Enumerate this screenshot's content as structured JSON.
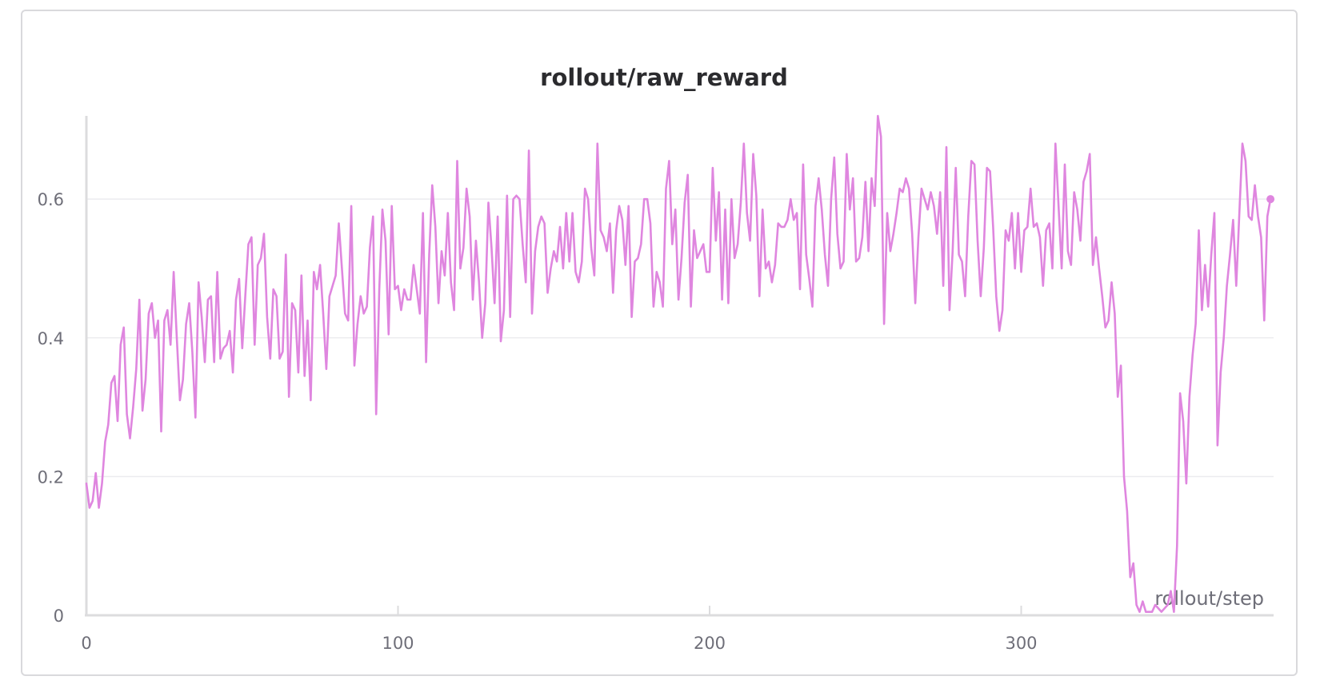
{
  "chart_data": {
    "type": "line",
    "title": "rollout/raw_reward",
    "xlabel": "rollout/step",
    "ylabel": "",
    "xlim": [
      0,
      381
    ],
    "ylim": [
      0,
      0.72
    ],
    "x_ticks": [
      "0",
      "100",
      "200",
      "300"
    ],
    "y_ticks": [
      "0",
      "0.2",
      "0.4",
      "0.6"
    ],
    "grid": true,
    "legend": "none",
    "color": "#df86df",
    "series": [
      {
        "x_start": 0,
        "x_step": 1,
        "values": [
          0.19,
          0.155,
          0.165,
          0.205,
          0.155,
          0.19,
          0.25,
          0.275,
          0.335,
          0.345,
          0.28,
          0.39,
          0.415,
          0.29,
          0.255,
          0.3,
          0.355,
          0.455,
          0.295,
          0.34,
          0.435,
          0.45,
          0.4,
          0.425,
          0.265,
          0.425,
          0.44,
          0.39,
          0.495,
          0.4,
          0.31,
          0.34,
          0.42,
          0.45,
          0.38,
          0.285,
          0.48,
          0.43,
          0.365,
          0.455,
          0.46,
          0.365,
          0.495,
          0.37,
          0.385,
          0.39,
          0.41,
          0.35,
          0.455,
          0.485,
          0.385,
          0.46,
          0.535,
          0.545,
          0.39,
          0.505,
          0.515,
          0.55,
          0.43,
          0.37,
          0.47,
          0.46,
          0.37,
          0.38,
          0.52,
          0.315,
          0.45,
          0.44,
          0.35,
          0.49,
          0.345,
          0.425,
          0.31,
          0.495,
          0.47,
          0.505,
          0.435,
          0.355,
          0.46,
          0.475,
          0.49,
          0.565,
          0.5,
          0.435,
          0.425,
          0.59,
          0.36,
          0.42,
          0.46,
          0.435,
          0.445,
          0.53,
          0.575,
          0.29,
          0.47,
          0.585,
          0.54,
          0.405,
          0.59,
          0.47,
          0.475,
          0.44,
          0.47,
          0.455,
          0.455,
          0.505,
          0.47,
          0.435,
          0.58,
          0.365,
          0.52,
          0.62,
          0.56,
          0.45,
          0.525,
          0.49,
          0.58,
          0.48,
          0.44,
          0.655,
          0.5,
          0.53,
          0.615,
          0.575,
          0.455,
          0.54,
          0.48,
          0.4,
          0.45,
          0.595,
          0.53,
          0.45,
          0.575,
          0.395,
          0.44,
          0.605,
          0.43,
          0.6,
          0.605,
          0.6,
          0.535,
          0.48,
          0.67,
          0.435,
          0.525,
          0.56,
          0.575,
          0.565,
          0.465,
          0.5,
          0.525,
          0.51,
          0.56,
          0.5,
          0.58,
          0.51,
          0.58,
          0.495,
          0.48,
          0.51,
          0.615,
          0.6,
          0.53,
          0.49,
          0.68,
          0.555,
          0.545,
          0.525,
          0.565,
          0.465,
          0.555,
          0.59,
          0.57,
          0.505,
          0.59,
          0.43,
          0.51,
          0.515,
          0.535,
          0.6,
          0.6,
          0.565,
          0.445,
          0.495,
          0.48,
          0.445,
          0.615,
          0.655,
          0.535,
          0.585,
          0.455,
          0.515,
          0.595,
          0.635,
          0.445,
          0.555,
          0.515,
          0.525,
          0.535,
          0.495,
          0.495,
          0.645,
          0.54,
          0.61,
          0.455,
          0.585,
          0.45,
          0.6,
          0.515,
          0.535,
          0.595,
          0.68,
          0.58,
          0.54,
          0.665,
          0.605,
          0.46,
          0.585,
          0.5,
          0.51,
          0.48,
          0.505,
          0.565,
          0.56,
          0.56,
          0.57,
          0.6,
          0.57,
          0.58,
          0.47,
          0.65,
          0.52,
          0.485,
          0.445,
          0.59,
          0.63,
          0.585,
          0.52,
          0.475,
          0.6,
          0.66,
          0.55,
          0.5,
          0.51,
          0.665,
          0.585,
          0.63,
          0.51,
          0.515,
          0.545,
          0.625,
          0.525,
          0.63,
          0.59,
          0.72,
          0.69,
          0.42,
          0.58,
          0.525,
          0.55,
          0.58,
          0.615,
          0.61,
          0.63,
          0.615,
          0.55,
          0.45,
          0.545,
          0.615,
          0.6,
          0.585,
          0.61,
          0.59,
          0.55,
          0.61,
          0.475,
          0.675,
          0.44,
          0.525,
          0.645,
          0.52,
          0.51,
          0.46,
          0.575,
          0.655,
          0.65,
          0.54,
          0.46,
          0.53,
          0.645,
          0.64,
          0.56,
          0.46,
          0.41,
          0.44,
          0.555,
          0.54,
          0.58,
          0.5,
          0.58,
          0.495,
          0.555,
          0.56,
          0.615,
          0.56,
          0.565,
          0.545,
          0.475,
          0.555,
          0.565,
          0.5,
          0.68,
          0.59,
          0.5,
          0.65,
          0.525,
          0.505,
          0.61,
          0.585,
          0.54,
          0.625,
          0.64,
          0.665,
          0.505,
          0.545,
          0.5,
          0.46,
          0.415,
          0.425,
          0.48,
          0.435,
          0.315,
          0.36,
          0.2,
          0.15,
          0.055,
          0.075,
          0.015,
          0.005,
          0.02,
          0.005,
          0.005,
          0.005,
          0.015,
          0.01,
          0.005,
          0.01,
          0.015,
          0.035,
          0.005,
          0.1,
          0.32,
          0.28,
          0.19,
          0.315,
          0.375,
          0.42,
          0.555,
          0.44,
          0.505,
          0.445,
          0.52,
          0.58,
          0.245,
          0.35,
          0.4,
          0.475,
          0.52,
          0.57,
          0.475,
          0.58,
          0.68,
          0.655,
          0.575,
          0.57,
          0.62,
          0.575,
          0.545,
          0.425,
          0.575,
          0.6
        ]
      }
    ]
  }
}
